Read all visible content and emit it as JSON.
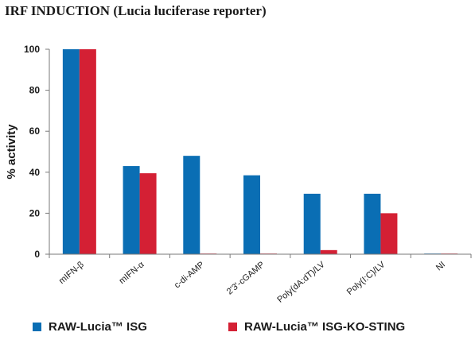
{
  "title": "IRF INDUCTION  (Lucia luciferase reporter)",
  "chart_data": {
    "type": "bar",
    "title": "IRF INDUCTION  (Lucia luciferase reporter)",
    "xlabel": "",
    "ylabel": "% activity",
    "ylim": [
      0,
      100
    ],
    "yticks": [
      0,
      20,
      40,
      60,
      80,
      100
    ],
    "grid": false,
    "legend_position": "bottom",
    "categories": [
      "mIFN-β",
      "mIFN-α",
      "c-di-AMP",
      "2'3'-cGAMP",
      "Poly(dA:dT)/LV",
      "Poly(I:C)/LV",
      "NI"
    ],
    "series": [
      {
        "name": "RAW-Lucia™ ISG",
        "color": "#0a6eb4",
        "values": [
          100,
          43,
          48,
          38.5,
          29.5,
          29.5,
          0.3
        ]
      },
      {
        "name": "RAW-Lucia™ ISG-KO-STING",
        "color": "#d42034",
        "values": [
          100,
          39.5,
          0.3,
          0.3,
          2,
          20,
          0.3
        ]
      }
    ]
  }
}
